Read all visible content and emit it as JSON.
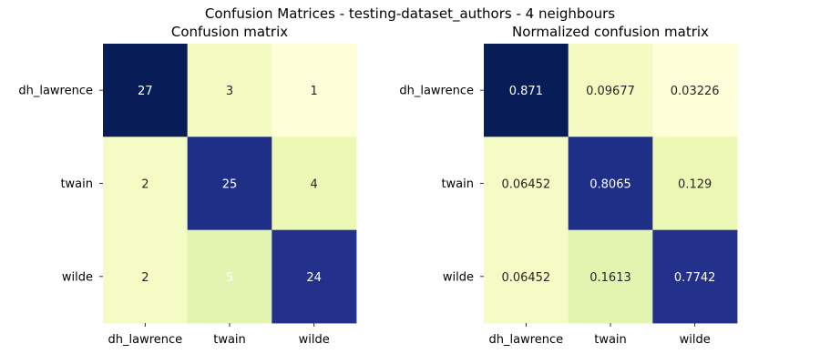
{
  "figure": {
    "suptitle": "Confusion Matrices - testing-dataset_authors - 4 neighbours"
  },
  "chart_data": [
    {
      "type": "heatmap",
      "title": "Confusion matrix",
      "xlabel": "",
      "ylabel": "",
      "row_labels": [
        "dh_lawrence",
        "twain",
        "wilde"
      ],
      "col_labels": [
        "dh_lawrence",
        "twain",
        "wilde"
      ],
      "values": [
        [
          27,
          3,
          1
        ],
        [
          2,
          25,
          4
        ],
        [
          2,
          5,
          24
        ]
      ],
      "labels": [
        [
          "27",
          "3",
          "1"
        ],
        [
          "2",
          "25",
          "4"
        ],
        [
          "2",
          "5",
          "24"
        ]
      ],
      "colors": [
        [
          "#081d58",
          "#f3fac2",
          "#fefed9"
        ],
        [
          "#f5fbc5",
          "#1f2f88",
          "#eef8b5"
        ],
        [
          "#f5fbc5",
          "#e3f4b1",
          "#23318c"
        ]
      ],
      "text_colors": [
        [
          "#ffffff",
          "#262626",
          "#262626"
        ],
        [
          "#262626",
          "#ffffff",
          "#262626"
        ],
        [
          "#262626",
          "#ffffff",
          "#ffffff"
        ]
      ],
      "colormap": "YlGnBu",
      "colorbar": false
    },
    {
      "type": "heatmap",
      "title": "Normalized confusion matrix",
      "xlabel": "",
      "ylabel": "",
      "row_labels": [
        "dh_lawrence",
        "twain",
        "wilde"
      ],
      "col_labels": [
        "dh_lawrence",
        "twain",
        "wilde"
      ],
      "values": [
        [
          0.871,
          0.09677,
          0.03226
        ],
        [
          0.06452,
          0.8065,
          0.129
        ],
        [
          0.06452,
          0.1613,
          0.7742
        ]
      ],
      "labels": [
        [
          "0.871",
          "0.09677",
          "0.03226"
        ],
        [
          "0.06452",
          "0.8065",
          "0.129"
        ],
        [
          "0.06452",
          "0.1613",
          "0.7742"
        ]
      ],
      "colors": [
        [
          "#081d58",
          "#f3fac2",
          "#fefed9"
        ],
        [
          "#f5fbc5",
          "#1f2f88",
          "#eef8b5"
        ],
        [
          "#f5fbc5",
          "#e3f4b1",
          "#23318c"
        ]
      ],
      "text_colors": [
        [
          "#ffffff",
          "#262626",
          "#262626"
        ],
        [
          "#262626",
          "#ffffff",
          "#262626"
        ],
        [
          "#262626",
          "#262626",
          "#ffffff"
        ]
      ],
      "colormap": "YlGnBu",
      "colorbar": false
    }
  ]
}
